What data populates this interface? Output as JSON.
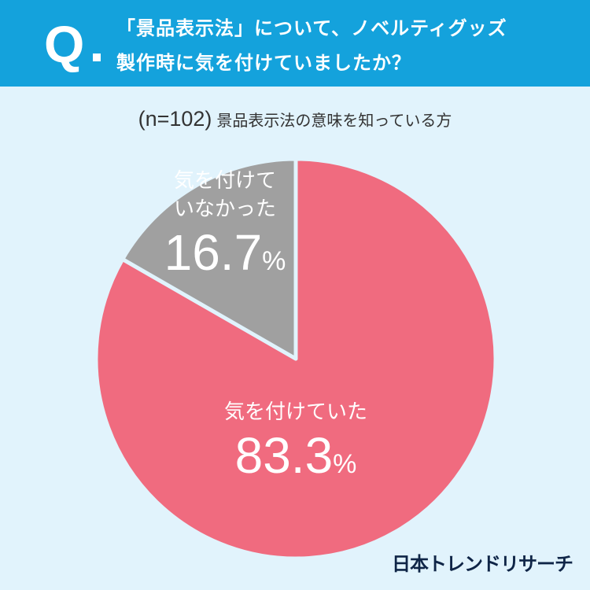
{
  "header": {
    "q_mark": "Q",
    "question_line1": "「景品表示法」について、ノベルティグッズ",
    "question_line2": "製作時に気を付けていましたか？"
  },
  "subtitle": {
    "n": "(n=102)",
    "text": "景品表示法の意味を知っている方"
  },
  "chart_data": {
    "type": "pie",
    "slices": [
      {
        "label_lines": [
          "気を付けていた"
        ],
        "value": 83.3,
        "color": "#f06b7f",
        "percent_text": "83.3",
        "percent_sign": "%"
      },
      {
        "label_lines": [
          "気を付けて",
          "いなかった"
        ],
        "value": 16.7,
        "color": "#a0a0a0",
        "percent_text": "16.7",
        "percent_sign": "%"
      }
    ],
    "start": "top",
    "direction": "clockwise",
    "separator_color": "#e1f3fc"
  },
  "brand": "日本トレンドリサーチ"
}
